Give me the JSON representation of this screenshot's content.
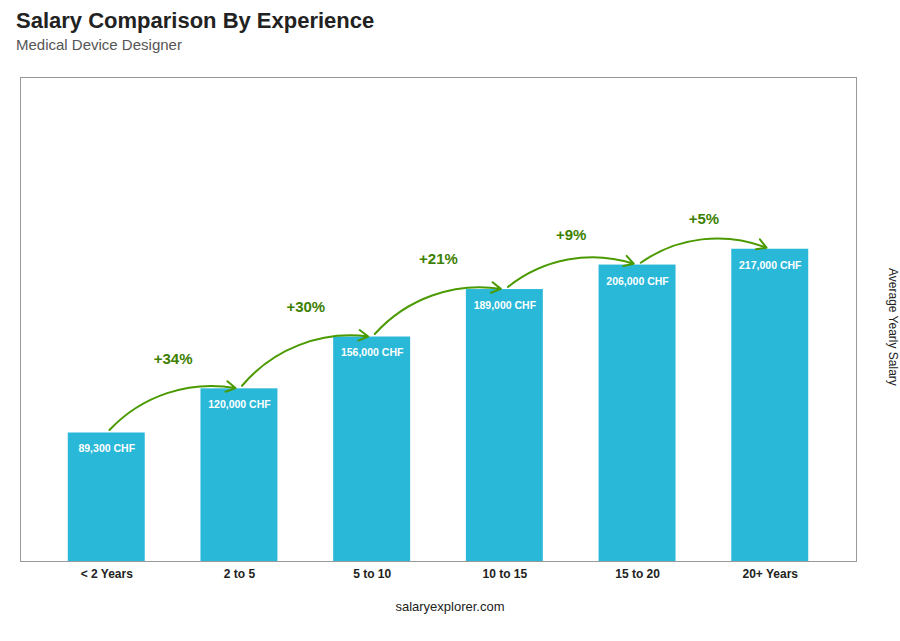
{
  "chart_data": {
    "type": "bar",
    "title": "Salary Comparison By Experience",
    "subtitle": "Medical Device Designer",
    "ylabel": "Average Yearly Salary",
    "categories": [
      "< 2 Years",
      "2 to 5",
      "5 to 10",
      "10 to 15",
      "15 to 20",
      "20+ Years"
    ],
    "values": [
      89300,
      120000,
      156000,
      189000,
      206000,
      217000
    ],
    "value_labels": [
      "89,300 CHF",
      "120,000 CHF",
      "156,000 CHF",
      "189,000 CHF",
      "206,000 CHF",
      "217,000 CHF"
    ],
    "data_labels": true,
    "color": "#29b8d8",
    "annotations": [
      "+34%",
      "+30%",
      "+21%",
      "+9%",
      "+5%"
    ],
    "source": "salaryexplorer.com",
    "ylim": [
      0,
      336350
    ],
    "tick_labels": "x",
    "grid": false
  }
}
